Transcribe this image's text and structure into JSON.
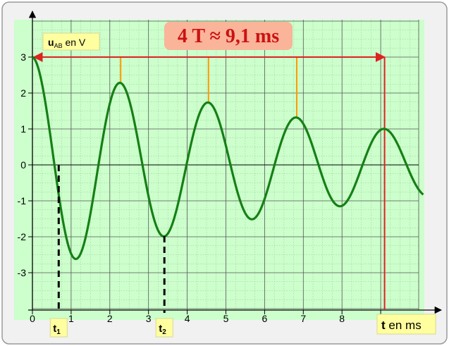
{
  "chart_data": {
    "type": "line",
    "ylabel_main": "u",
    "ylabel_sub": "AB",
    "ylabel_rest": " en V",
    "xlabel_main": "t",
    "xlabel_rest": " en ms",
    "annotation": "4 T ≈ 9,1 ms",
    "xlim": [
      0,
      10.1
    ],
    "ylim": [
      -3.75,
      3.75
    ],
    "x_ticks": [
      {
        "value": 0,
        "label": "0"
      },
      {
        "value": 1,
        "label": "1"
      },
      {
        "value": 2,
        "label": "2"
      },
      {
        "value": 3,
        "label": "3"
      },
      {
        "value": 4,
        "label": "4"
      },
      {
        "value": 5,
        "label": "5"
      },
      {
        "value": 6,
        "label": "6"
      },
      {
        "value": 7,
        "label": "7"
      },
      {
        "value": 8,
        "label": "8"
      },
      {
        "value": 9,
        "label": "9"
      }
    ],
    "y_ticks": [
      {
        "value": 3,
        "label": "3"
      },
      {
        "value": 2,
        "label": "2"
      },
      {
        "value": 1,
        "label": "1"
      },
      {
        "value": 0,
        "label": "0"
      },
      {
        "value": -1,
        "label": "-1"
      },
      {
        "value": -2,
        "label": "-2"
      },
      {
        "value": -3,
        "label": "-3"
      }
    ],
    "grid": true,
    "series": [
      {
        "color": "#168016",
        "model": {
          "amplitude": 3,
          "period_ms": 2.275,
          "decay_ms": 8.3
        },
        "x_range": [
          0,
          10.1
        ],
        "key_points": [
          {
            "x": 0,
            "y": 3.0
          },
          {
            "x": 1.14,
            "y": -2.61
          },
          {
            "x": 2.28,
            "y": 2.27
          },
          {
            "x": 3.41,
            "y": -1.98
          },
          {
            "x": 4.55,
            "y": 1.73
          },
          {
            "x": 5.69,
            "y": -1.51
          },
          {
            "x": 6.83,
            "y": 1.32
          },
          {
            "x": 7.96,
            "y": -1.15
          },
          {
            "x": 9.1,
            "y": 1.0
          }
        ]
      }
    ],
    "markers": [
      {
        "label_main": "t",
        "label_sub": "1",
        "x": 0.57,
        "y": 0
      },
      {
        "label_main": "t",
        "label_sub": "2",
        "x": 3.41,
        "y": -1.98
      }
    ],
    "period_lines": [
      2.28,
      4.55,
      6.83
    ],
    "period_end": 9.1,
    "colors": {
      "plot_bg": "#ccffcc",
      "outer_bg": "#f1f1f1",
      "curve": "#168016",
      "red": "#dd2222",
      "orange": "#ff9900",
      "annotation_bg": "#f9b49a",
      "annotation_text": "#cc1111",
      "label_bg": "#ffffa0"
    }
  }
}
